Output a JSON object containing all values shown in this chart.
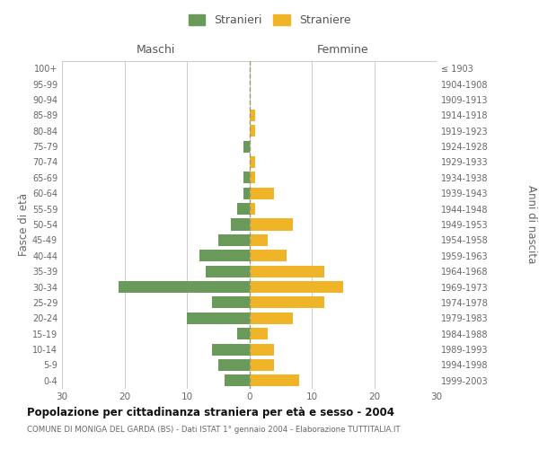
{
  "age_groups": [
    "0-4",
    "5-9",
    "10-14",
    "15-19",
    "20-24",
    "25-29",
    "30-34",
    "35-39",
    "40-44",
    "45-49",
    "50-54",
    "55-59",
    "60-64",
    "65-69",
    "70-74",
    "75-79",
    "80-84",
    "85-89",
    "90-94",
    "95-99",
    "100+"
  ],
  "birth_years": [
    "1999-2003",
    "1994-1998",
    "1989-1993",
    "1984-1988",
    "1979-1983",
    "1974-1978",
    "1969-1973",
    "1964-1968",
    "1959-1963",
    "1954-1958",
    "1949-1953",
    "1944-1948",
    "1939-1943",
    "1934-1938",
    "1929-1933",
    "1924-1928",
    "1919-1923",
    "1914-1918",
    "1909-1913",
    "1904-1908",
    "≤ 1903"
  ],
  "males": [
    4,
    5,
    6,
    2,
    10,
    6,
    21,
    7,
    8,
    5,
    3,
    2,
    1,
    1,
    0,
    1,
    0,
    0,
    0,
    0,
    0
  ],
  "females": [
    8,
    4,
    4,
    3,
    7,
    12,
    15,
    12,
    6,
    3,
    7,
    1,
    4,
    1,
    1,
    0,
    1,
    1,
    0,
    0,
    0
  ],
  "male_color": "#6a9a5a",
  "female_color": "#f0b429",
  "title_main": "Popolazione per cittadinanza straniera per età e sesso - 2004",
  "title_sub": "COMUNE DI MONIGA DEL GARDA (BS) - Dati ISTAT 1° gennaio 2004 - Elaborazione TUTTITALIA.IT",
  "ylabel_left": "Fasce di età",
  "ylabel_right": "Anni di nascita",
  "header_left": "Maschi",
  "header_right": "Femmine",
  "legend_male": "Stranieri",
  "legend_female": "Straniere",
  "xlim": 30,
  "background_color": "#ffffff",
  "grid_color": "#cccccc"
}
